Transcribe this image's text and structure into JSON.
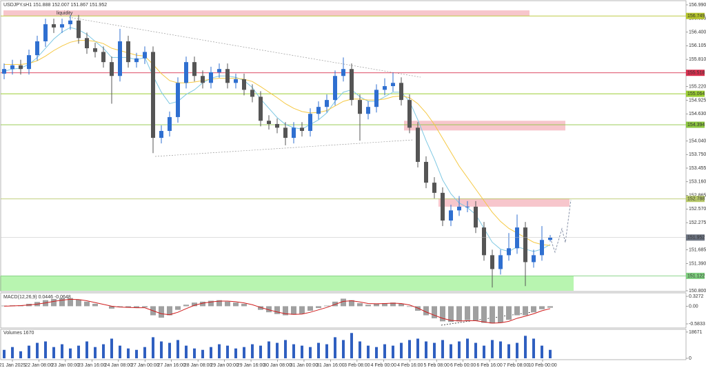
{
  "chart_data": {
    "type": "candlestick",
    "title": "USDJPY.sH1 151.888 152.007 151.867 151.952",
    "time_labels": [
      "21 Jan 2025",
      "22 Jan 08:00",
      "23 Jan 00:00",
      "23 Jan 16:00",
      "24 Jan 08:00",
      "27 Jan 00:00",
      "27 Jan 16:00",
      "28 Jan 08:00",
      "29 Jan 00:00",
      "29 Jan 16:00",
      "30 Jan 08:00",
      "31 Jan 00:00",
      "31 Jan 16:00",
      "3 Feb 08:00",
      "4 Feb 00:00",
      "4 Feb 16:00",
      "5 Feb 08:00",
      "6 Feb 00:00",
      "6 Feb 16:00",
      "7 Feb 08:00",
      "10 Feb 00:00"
    ],
    "open": [
      155.5,
      155.6,
      155.68,
      155.6,
      155.9,
      156.2,
      156.57,
      156.5,
      156.57,
      156.65,
      156.27,
      156.05,
      155.97,
      155.75,
      155.45,
      156.2,
      155.75,
      155.83,
      155.97,
      154.11,
      154.26,
      154.56,
      155.3,
      155.75,
      155.45,
      155.3,
      155.53,
      155.6,
      155.3,
      155.38,
      155.15,
      155.0,
      154.48,
      154.41,
      154.33,
      154.11,
      154.33,
      154.26,
      154.63,
      154.78,
      154.93,
      155.45,
      155.6,
      154.93,
      154.63,
      154.78,
      155.15,
      155.23,
      155.3,
      154.93,
      154.33,
      153.59,
      153.14,
      152.92,
      152.32,
      152.54,
      152.62,
      152.62,
      152.17,
      151.57,
      151.27,
      151.57,
      151.72,
      152.17,
      151.42,
      151.57,
      151.9
    ],
    "high": [
      155.72,
      155.8,
      155.8,
      156.02,
      156.32,
      156.69,
      156.69,
      156.69,
      156.77,
      156.77,
      156.39,
      156.17,
      156.09,
      155.87,
      156.47,
      156.32,
      155.95,
      156.09,
      156.09,
      154.38,
      154.68,
      155.42,
      155.87,
      155.87,
      155.57,
      155.65,
      155.72,
      155.72,
      155.5,
      155.5,
      155.27,
      155.12,
      154.6,
      154.53,
      154.45,
      154.45,
      154.45,
      154.75,
      154.9,
      155.05,
      155.57,
      155.85,
      155.72,
      155.05,
      154.9,
      155.27,
      155.4,
      155.52,
      155.42,
      155.05,
      154.45,
      153.71,
      153.26,
      153.04,
      152.66,
      152.85,
      152.74,
      152.74,
      152.29,
      151.69,
      151.69,
      152.05,
      152.45,
      152.29,
      151.69,
      152.2,
      152.007
    ],
    "low": [
      155.38,
      155.48,
      155.48,
      155.48,
      155.78,
      156.08,
      156.38,
      156.38,
      156.45,
      156.15,
      155.93,
      155.85,
      155.63,
      154.85,
      155.33,
      155.63,
      155.63,
      155.71,
      153.78,
      153.99,
      154.14,
      154.44,
      155.18,
      155.33,
      155.18,
      155.18,
      155.41,
      155.18,
      155.18,
      155.03,
      154.88,
      154.36,
      154.29,
      154.21,
      153.95,
      153.99,
      154.14,
      154.14,
      154.51,
      154.66,
      154.81,
      155.33,
      154.81,
      154.05,
      154.51,
      154.66,
      155.03,
      155.11,
      154.81,
      154.21,
      153.47,
      153.02,
      152.8,
      152.2,
      152.2,
      152.42,
      152.5,
      152.05,
      151.45,
      150.87,
      151.15,
      151.45,
      151.6,
      150.9,
      151.3,
      151.45,
      151.867
    ],
    "close": [
      155.6,
      155.68,
      155.6,
      155.9,
      156.2,
      156.57,
      156.5,
      156.57,
      156.65,
      156.27,
      156.05,
      155.97,
      155.75,
      155.45,
      156.2,
      155.75,
      155.83,
      155.97,
      154.11,
      154.26,
      154.56,
      155.3,
      155.75,
      155.45,
      155.3,
      155.53,
      155.6,
      155.3,
      155.38,
      155.15,
      155.0,
      154.48,
      154.41,
      154.33,
      154.11,
      154.33,
      154.26,
      154.63,
      154.78,
      154.93,
      155.45,
      155.6,
      154.93,
      154.63,
      154.78,
      155.15,
      155.23,
      155.3,
      154.93,
      154.33,
      153.59,
      153.14,
      152.92,
      152.32,
      152.54,
      152.62,
      152.62,
      152.17,
      151.57,
      151.27,
      151.57,
      151.72,
      152.17,
      151.42,
      151.57,
      151.9,
      151.952
    ],
    "up_color": "#2f6fd0",
    "down_color": "#555555",
    "moving_averages": [
      {
        "color": "#7ec8e3",
        "values": [
          155.55,
          155.6,
          155.62,
          155.7,
          155.85,
          156.05,
          156.25,
          156.4,
          156.5,
          156.45,
          156.35,
          156.2,
          156.05,
          155.85,
          155.85,
          155.85,
          155.8,
          155.85,
          155.45,
          155.1,
          154.85,
          154.9,
          155.05,
          155.15,
          155.3,
          155.4,
          155.45,
          155.45,
          155.42,
          155.35,
          155.2,
          154.95,
          154.75,
          154.55,
          154.4,
          154.33,
          154.3,
          154.4,
          154.5,
          154.65,
          154.9,
          155.1,
          155.15,
          155.0,
          154.9,
          154.9,
          155.0,
          155.1,
          155.1,
          154.9,
          154.5,
          154.05,
          153.65,
          153.2,
          152.9,
          152.7,
          152.6,
          152.45,
          152.15,
          151.85,
          151.7,
          151.65,
          151.75,
          151.7,
          151.65,
          151.7,
          151.8
        ]
      },
      {
        "color": "#f5c842",
        "values": [
          155.7,
          155.7,
          155.7,
          155.72,
          155.78,
          155.88,
          156.0,
          156.1,
          156.18,
          156.22,
          156.22,
          156.2,
          156.15,
          156.05,
          156.0,
          155.95,
          155.9,
          155.88,
          155.7,
          155.5,
          155.35,
          155.3,
          155.3,
          155.32,
          155.35,
          155.38,
          155.4,
          155.4,
          155.4,
          155.38,
          155.33,
          155.22,
          155.1,
          154.98,
          154.85,
          154.75,
          154.68,
          154.65,
          154.66,
          154.7,
          154.8,
          154.9,
          154.95,
          154.95,
          154.93,
          154.93,
          154.95,
          155.0,
          155.02,
          154.98,
          154.85,
          154.65,
          154.4,
          154.1,
          153.8,
          153.5,
          153.25,
          153.0,
          152.75,
          152.5,
          152.3,
          152.15,
          152.05,
          151.95,
          151.85,
          151.8,
          151.78
        ]
      }
    ],
    "ylim": [
      150.8,
      156.99
    ],
    "yticks": [
      {
        "value": 156.99,
        "label": "156.990"
      },
      156.695,
      {
        "value": 156.4,
        "label": "156.400"
      },
      156.105,
      {
        "value": 155.81,
        "label": "155.810"
      },
      {
        "value": 155.22,
        "label": "155.220"
      },
      154.925,
      {
        "value": 154.63,
        "label": "154.630"
      },
      {
        "value": 154.04,
        "label": "154.040"
      },
      {
        "value": 153.75,
        "label": "153.750"
      },
      153.455,
      {
        "value": 153.16,
        "label": "153.160"
      },
      152.865,
      {
        "value": 152.57,
        "label": "152.570"
      },
      152.275,
      151.685,
      {
        "value": 151.39,
        "label": "151.390"
      },
      {
        "value": 150.8,
        "label": "150.800"
      }
    ],
    "levels": [
      {
        "value": 156.749,
        "color": "#b5c42a"
      },
      {
        "value": 155.518,
        "color": "#d9304f"
      },
      {
        "value": 155.064,
        "color": "#9acd32"
      },
      {
        "value": 154.394,
        "color": "#8cc63f"
      },
      {
        "value": 152.788,
        "color": "#b8c96a"
      },
      {
        "value": 151.122,
        "color": "#7fcf7f"
      }
    ],
    "current_price": 151.952,
    "zones": [
      {
        "label": "liquidity",
        "top": 156.87,
        "bottom": 156.75,
        "color": "#f7c6cc"
      },
      {
        "top": 154.48,
        "bottom": 154.27,
        "color": "#f7c6cc"
      },
      {
        "top": 152.8,
        "bottom": 152.62,
        "color": "#f7c6cc"
      },
      {
        "top": 151.12,
        "bottom": 150.8,
        "color": "#b8f5b0"
      }
    ],
    "macd": {
      "label": "MACD(12,26,9) 0.0446 -0.0648",
      "histogram": [
        0.02,
        0.03,
        0.03,
        0.08,
        0.14,
        0.2,
        0.24,
        0.26,
        0.27,
        0.22,
        0.15,
        0.08,
        0.0,
        -0.08,
        -0.02,
        -0.05,
        -0.06,
        -0.04,
        -0.3,
        -0.38,
        -0.3,
        -0.12,
        0.05,
        0.12,
        0.15,
        0.18,
        0.2,
        0.15,
        0.12,
        0.08,
        0.0,
        -0.12,
        -0.2,
        -0.26,
        -0.3,
        -0.28,
        -0.25,
        -0.15,
        -0.06,
        0.02,
        0.15,
        0.25,
        0.2,
        0.1,
        0.05,
        0.08,
        0.1,
        0.12,
        0.08,
        -0.02,
        -0.15,
        -0.3,
        -0.4,
        -0.5,
        -0.52,
        -0.5,
        -0.46,
        -0.48,
        -0.55,
        -0.57,
        -0.55,
        -0.45,
        -0.3,
        -0.3,
        -0.2,
        -0.1,
        -0.05
      ],
      "signal": [
        0.0,
        0.01,
        0.02,
        0.04,
        0.07,
        0.11,
        0.16,
        0.2,
        0.23,
        0.22,
        0.18,
        0.12,
        0.06,
        0.0,
        -0.03,
        -0.04,
        -0.05,
        -0.05,
        -0.15,
        -0.25,
        -0.28,
        -0.2,
        -0.08,
        0.03,
        0.1,
        0.14,
        0.17,
        0.17,
        0.15,
        0.11,
        0.05,
        -0.04,
        -0.12,
        -0.19,
        -0.25,
        -0.27,
        -0.26,
        -0.2,
        -0.12,
        -0.04,
        0.06,
        0.16,
        0.18,
        0.14,
        0.09,
        0.08,
        0.09,
        0.1,
        0.09,
        0.04,
        -0.06,
        -0.19,
        -0.3,
        -0.4,
        -0.47,
        -0.49,
        -0.48,
        -0.48,
        -0.52,
        -0.56,
        -0.55,
        -0.5,
        -0.4,
        -0.33,
        -0.25,
        -0.15,
        -0.08
      ],
      "histogram_color": "#a0a0a0",
      "signal_color": "#d01c1c",
      "ylim": [
        -0.72,
        0.42
      ],
      "yticks": [
        0.3272,
        {
          "value": 0,
          "label": "0.00"
        },
        -0.5833
      ]
    },
    "volumes": {
      "label": "Volumes 1670",
      "values": [
        6000,
        8000,
        5000,
        9000,
        11000,
        12000,
        8000,
        10000,
        7000,
        9000,
        12000,
        8000,
        10000,
        14000,
        9000,
        7000,
        6000,
        8000,
        15000,
        12000,
        11000,
        13000,
        9000,
        7000,
        6000,
        8000,
        10000,
        9000,
        7000,
        8000,
        10000,
        9000,
        12000,
        11000,
        13000,
        10000,
        9000,
        8000,
        11000,
        10000,
        15000,
        13000,
        18000,
        12000,
        9000,
        8000,
        10000,
        9000,
        11000,
        13000,
        14000,
        12000,
        11000,
        13000,
        10000,
        12000,
        14000,
        11000,
        9000,
        13000,
        12000,
        10000,
        11000,
        16000,
        14000,
        9000,
        6000
      ],
      "color": "#2f5fc0",
      "ylim": [
        0,
        20600
      ],
      "yticks": [
        18671,
        0
      ]
    }
  }
}
